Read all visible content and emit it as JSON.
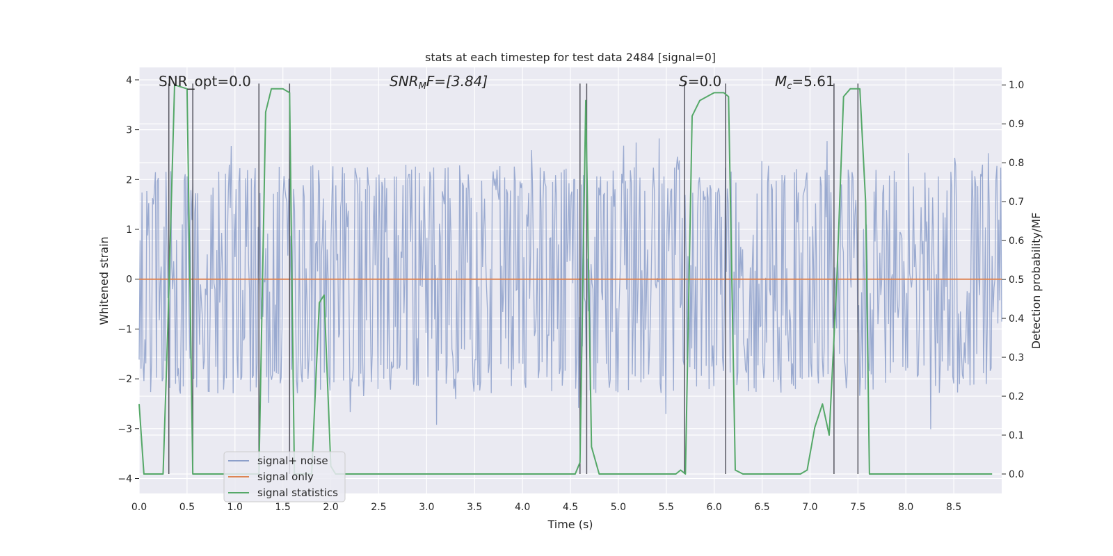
{
  "chart_data": {
    "type": "line",
    "title": "stats at each timestep for test data 2484 [signal=0]",
    "xlabel": "Time (s)",
    "ylabel": "Whitened strain",
    "ylabel_right": "Detection probability/MF",
    "xlim": [
      0,
      9.0
    ],
    "ylim": [
      -4.3,
      4.25
    ],
    "ylim_right": [
      -0.05,
      1.045
    ],
    "x_ticks": [
      0.0,
      0.5,
      1.0,
      1.5,
      2.0,
      2.5,
      3.0,
      3.5,
      4.0,
      4.5,
      5.0,
      5.5,
      6.0,
      6.5,
      7.0,
      7.5,
      8.0,
      8.5
    ],
    "x_tick_labels": [
      "0.0",
      "0.5",
      "1.0",
      "1.5",
      "2.0",
      "2.5",
      "3.0",
      "3.5",
      "4.0",
      "4.5",
      "5.0",
      "5.5",
      "6.0",
      "6.5",
      "7.0",
      "7.5",
      "8.0",
      "8.5"
    ],
    "y_ticks": [
      -4,
      -3,
      -2,
      -1,
      0,
      1,
      2,
      3,
      4
    ],
    "y_tick_labels": [
      "−4",
      "−3",
      "−2",
      "−1",
      "0",
      "1",
      "2",
      "3",
      "4"
    ],
    "y_ticks_right": [
      0.0,
      0.1,
      0.2,
      0.3,
      0.4,
      0.5,
      0.6,
      0.7,
      0.8,
      0.9,
      1.0
    ],
    "y_tick_labels_right": [
      "0.0",
      "0.1",
      "0.2",
      "0.3",
      "0.4",
      "0.5",
      "0.6",
      "0.7",
      "0.8",
      "0.9",
      "1.0"
    ],
    "grid": true,
    "legend_position": "lower-left",
    "annotations": {
      "snr_opt": "SNR_opt=0.0",
      "snr_mf_main": "SNR",
      "snr_mf_sub": "M",
      "snr_mf_rest": "F=[3.84]",
      "s_main": "S",
      "s_rest": "=0.0",
      "mc_main": "M",
      "mc_sub": "c",
      "mc_rest": "=5.61"
    },
    "noise": {
      "name": "signal+ noise",
      "color": "#8c9fca",
      "sample_count": 900,
      "envelope_typical": 1.6,
      "extreme_range": [
        -3.7,
        3.85
      ]
    },
    "signal_only": {
      "name": "signal only",
      "color": "#dd8452",
      "x": [
        0.0,
        9.0
      ],
      "y": [
        0.0,
        0.0
      ]
    },
    "signal_statistics": {
      "name": "signal statistics",
      "color": "#55a868",
      "axis": "right",
      "x": [
        0.0,
        0.05,
        0.25,
        0.3,
        0.37,
        0.5,
        0.56,
        0.62,
        0.7,
        1.2,
        1.25,
        1.32,
        1.38,
        1.5,
        1.57,
        1.62,
        1.7,
        1.8,
        1.88,
        1.93,
        2.0,
        2.05,
        2.1,
        4.5,
        4.55,
        4.6,
        4.66,
        4.72,
        4.8,
        5.6,
        5.65,
        5.7,
        5.77,
        5.85,
        6.0,
        6.1,
        6.15,
        6.22,
        6.3,
        6.9,
        6.97,
        7.05,
        7.13,
        7.2,
        7.28,
        7.35,
        7.42,
        7.52,
        7.58,
        7.62,
        8.9
      ],
      "y": [
        0.18,
        0.0,
        0.0,
        0.38,
        1.0,
        0.99,
        0.0,
        0.0,
        0.0,
        0.0,
        0.0,
        0.93,
        0.99,
        0.99,
        0.98,
        0.0,
        0.0,
        0.0,
        0.44,
        0.46,
        0.02,
        0.0,
        0.0,
        0.0,
        0.0,
        0.03,
        0.96,
        0.07,
        0.0,
        0.0,
        0.01,
        0.0,
        0.92,
        0.96,
        0.98,
        0.98,
        0.97,
        0.01,
        0.0,
        0.0,
        0.01,
        0.12,
        0.18,
        0.1,
        0.5,
        0.97,
        0.99,
        0.99,
        0.7,
        0.0,
        0.0
      ]
    },
    "markers": {
      "color": "#55555f",
      "x": [
        0.31,
        0.56,
        1.25,
        1.57,
        4.6,
        4.67,
        5.69,
        6.12,
        7.25,
        7.5
      ]
    },
    "legend": [
      "signal+ noise",
      "signal only",
      "signal statistics"
    ],
    "colors": {
      "plot_bg": "#eaeaf2",
      "grid": "#ffffff",
      "text": "#262626"
    }
  }
}
